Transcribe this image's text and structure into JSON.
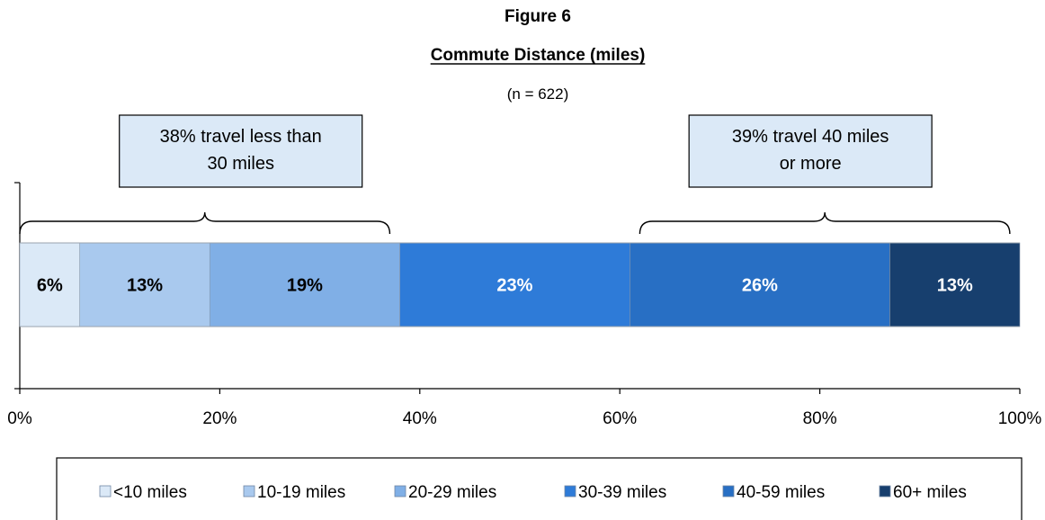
{
  "chart_data": {
    "type": "bar",
    "orientation": "horizontal-stacked-100",
    "figure_label": "Figure 6",
    "title": "Commute Distance (miles)",
    "subtitle": "(n = 622)",
    "series": [
      {
        "name": "<10 miles",
        "value": 6,
        "label": "6%",
        "color": "#dbe9f7",
        "label_color": "#000000"
      },
      {
        "name": "10-19 miles",
        "value": 13,
        "label": "13%",
        "color": "#a9c9ee",
        "label_color": "#000000"
      },
      {
        "name": "20-29 miles",
        "value": 19,
        "label": "19%",
        "color": "#80afe6",
        "label_color": "#000000"
      },
      {
        "name": "30-39 miles",
        "value": 23,
        "label": "23%",
        "color": "#2e7bd8",
        "label_color": "#ffffff"
      },
      {
        "name": "40-59 miles",
        "value": 26,
        "label": "26%",
        "color": "#286fc4",
        "label_color": "#ffffff"
      },
      {
        "name": "60+ miles",
        "value": 13,
        "label": "13%",
        "color": "#173f6e",
        "label_color": "#ffffff"
      }
    ],
    "xlim": [
      0,
      100
    ],
    "x_ticks": [
      "0%",
      "20%",
      "40%",
      "60%",
      "80%",
      "100%"
    ],
    "legend_position": "bottom",
    "grid": false,
    "annotations": [
      {
        "text_lines": [
          "38% travel less than",
          "30 miles"
        ],
        "brace_from": 0,
        "brace_to": 37
      },
      {
        "text_lines": [
          "39% travel 40 miles",
          "or more"
        ],
        "brace_from": 62,
        "brace_to": 99
      }
    ]
  }
}
